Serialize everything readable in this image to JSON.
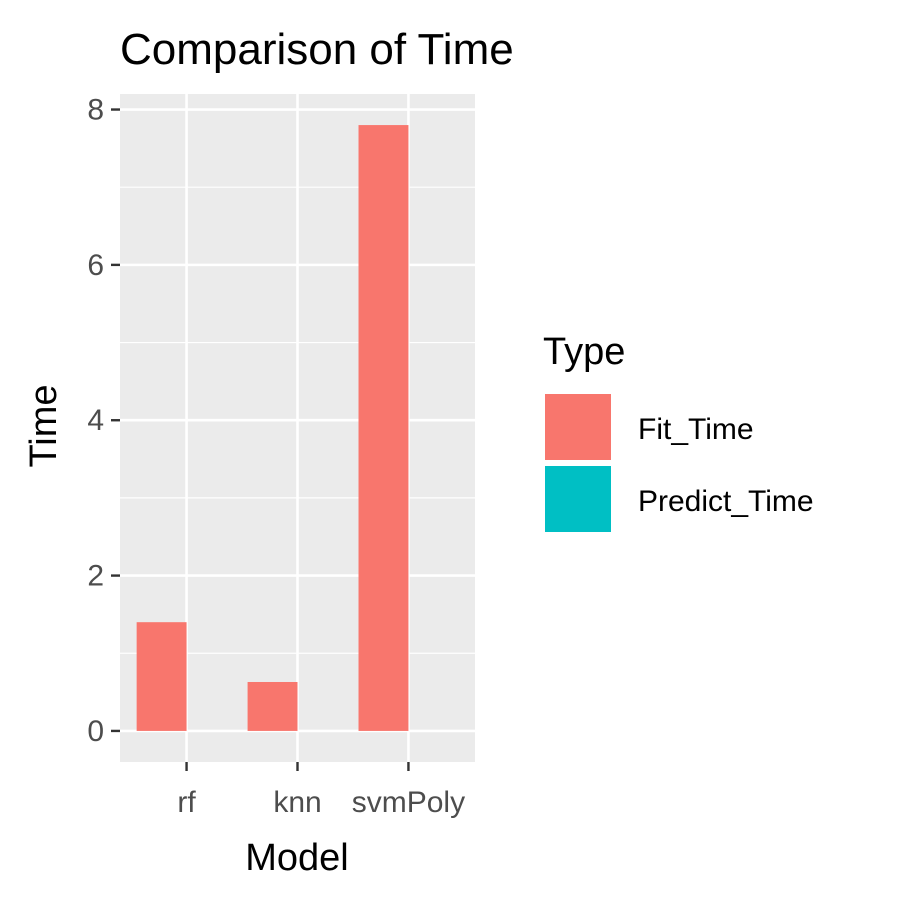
{
  "chart_data": {
    "type": "bar",
    "title": "Comparison of Time",
    "xlabel": "Model",
    "ylabel": "Time",
    "categories": [
      "rf",
      "knn",
      "svmPoly"
    ],
    "series": [
      {
        "name": "Fit_Time",
        "color": "#F8766D",
        "values": [
          1.4,
          0.63,
          7.8
        ]
      },
      {
        "name": "Predict_Time",
        "color": "#00BFC4",
        "values": [
          0.0,
          0.0,
          0.0
        ]
      }
    ],
    "ylim": [
      -0.4,
      8.2
    ],
    "yticks": [
      0,
      2,
      4,
      6,
      8
    ],
    "grid": true,
    "panel_background": "#EBEBEB",
    "legend": {
      "title": "Type",
      "placement": "right"
    }
  }
}
